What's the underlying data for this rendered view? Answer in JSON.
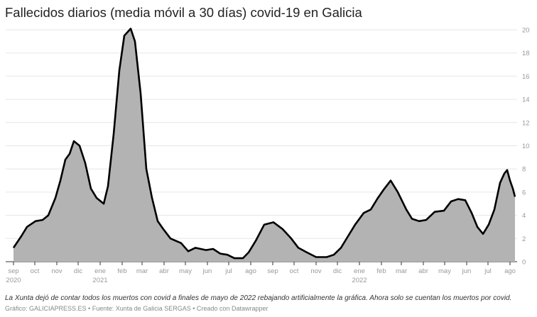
{
  "title": "Fallecidos diarios (media móvil a 30 días) covid-19 en Galicia",
  "note": "La Xunta dejó de contar todos los muertos con covid a finales de mayo de 2022 rebajando artificialmente la gráfica. Ahora solo se cuentan los muertos por covid.",
  "credit": "Gráfico: GALICIAPRESS.ES • Fuente: Xunta de Galicia SERGAS • Creado con Datawrapper",
  "chart_data": {
    "type": "area",
    "title": "Fallecidos diarios (media móvil a 30 días) covid-19 en Galicia",
    "ylim": [
      0,
      20
    ],
    "yticks": [
      0,
      2,
      4,
      6,
      8,
      10,
      12,
      14,
      16,
      18,
      20
    ],
    "grid": true,
    "y_axis_side": "right",
    "colors": {
      "fill": "#b3b3b3",
      "line": "#000000",
      "grid": "#e6e6e6"
    },
    "xticks": [
      {
        "date": "2020-09-01",
        "label": "sep",
        "year": "2020"
      },
      {
        "date": "2020-10-01",
        "label": "oct"
      },
      {
        "date": "2020-11-01",
        "label": "nov"
      },
      {
        "date": "2020-12-01",
        "label": "dic"
      },
      {
        "date": "2021-01-01",
        "label": "ene",
        "year": "2021"
      },
      {
        "date": "2021-02-01",
        "label": "feb"
      },
      {
        "date": "2021-03-01",
        "label": "mar"
      },
      {
        "date": "2021-04-01",
        "label": "abr"
      },
      {
        "date": "2021-05-01",
        "label": "may"
      },
      {
        "date": "2021-06-01",
        "label": "jun"
      },
      {
        "date": "2021-07-01",
        "label": "jul"
      },
      {
        "date": "2021-08-01",
        "label": "ago"
      },
      {
        "date": "2021-09-01",
        "label": "sep"
      },
      {
        "date": "2021-10-01",
        "label": "oct"
      },
      {
        "date": "2021-11-01",
        "label": "nov"
      },
      {
        "date": "2021-12-01",
        "label": "dic"
      },
      {
        "date": "2022-01-01",
        "label": "ene",
        "year": "2022"
      },
      {
        "date": "2022-02-01",
        "label": "feb"
      },
      {
        "date": "2022-03-01",
        "label": "mar"
      },
      {
        "date": "2022-04-01",
        "label": "abr"
      },
      {
        "date": "2022-05-01",
        "label": "may"
      },
      {
        "date": "2022-06-01",
        "label": "jun"
      },
      {
        "date": "2022-07-01",
        "label": "jul"
      },
      {
        "date": "2022-08-01",
        "label": "ago"
      }
    ],
    "x": [
      "2020-09-01",
      "2020-09-12",
      "2020-09-20",
      "2020-10-02",
      "2020-10-12",
      "2020-10-20",
      "2020-10-30",
      "2020-11-06",
      "2020-11-13",
      "2020-11-19",
      "2020-11-25",
      "2020-12-03",
      "2020-12-11",
      "2020-12-19",
      "2020-12-27",
      "2021-01-06",
      "2021-01-12",
      "2021-01-20",
      "2021-01-28",
      "2021-02-04",
      "2021-02-13",
      "2021-02-19",
      "2021-02-27",
      "2021-03-07",
      "2021-03-15",
      "2021-03-23",
      "2021-03-31",
      "2021-04-10",
      "2021-04-25",
      "2021-05-05",
      "2021-05-15",
      "2021-05-30",
      "2021-06-09",
      "2021-06-19",
      "2021-06-29",
      "2021-07-09",
      "2021-07-21",
      "2021-07-29",
      "2021-08-08",
      "2021-08-20",
      "2021-09-02",
      "2021-09-15",
      "2021-09-27",
      "2021-10-07",
      "2021-10-19",
      "2021-11-01",
      "2021-11-16",
      "2021-11-26",
      "2021-12-06",
      "2021-12-16",
      "2021-12-26",
      "2022-01-07",
      "2022-01-17",
      "2022-01-27",
      "2022-02-04",
      "2022-02-14",
      "2022-02-24",
      "2022-03-08",
      "2022-03-16",
      "2022-03-26",
      "2022-04-05",
      "2022-04-17",
      "2022-04-30",
      "2022-05-10",
      "2022-05-20",
      "2022-05-30",
      "2022-06-08",
      "2022-06-16",
      "2022-06-24",
      "2022-07-02",
      "2022-07-10",
      "2022-07-18",
      "2022-07-24",
      "2022-07-28",
      "2022-08-01",
      "2022-08-05",
      "2022-08-08"
    ],
    "values": [
      1.2,
      2.2,
      3.0,
      3.5,
      3.6,
      4.0,
      5.5,
      7.0,
      8.8,
      9.3,
      10.4,
      10.0,
      8.5,
      6.3,
      5.5,
      5.0,
      6.5,
      11.0,
      16.5,
      19.5,
      20.1,
      19.0,
      14.5,
      8.0,
      5.5,
      3.5,
      2.8,
      2.0,
      1.6,
      0.9,
      1.2,
      1.0,
      1.1,
      0.7,
      0.6,
      0.3,
      0.3,
      0.8,
      1.8,
      3.2,
      3.4,
      2.8,
      2.0,
      1.2,
      0.8,
      0.4,
      0.4,
      0.6,
      1.2,
      2.2,
      3.2,
      4.2,
      4.5,
      5.5,
      6.2,
      7.0,
      6.0,
      4.5,
      3.7,
      3.5,
      3.6,
      4.3,
      4.4,
      5.2,
      5.4,
      5.3,
      4.2,
      3.0,
      2.4,
      3.2,
      4.5,
      6.8,
      7.6,
      7.9,
      7.0,
      6.3,
      5.6
    ]
  }
}
